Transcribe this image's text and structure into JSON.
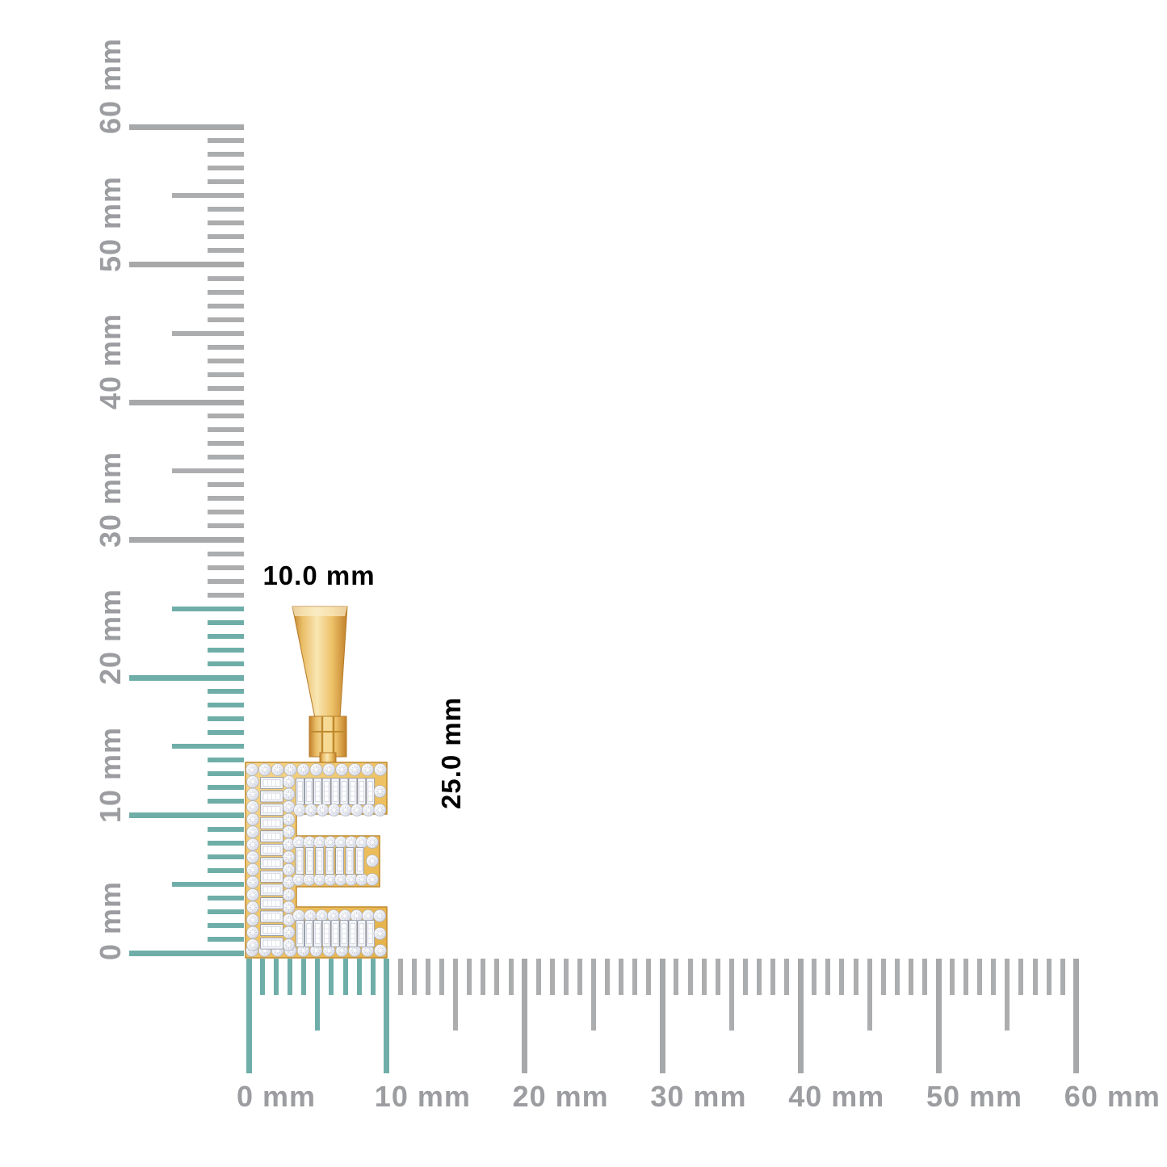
{
  "pendant": {
    "letter": "E",
    "width_label": "10.0 mm",
    "height_label": "25.0 mm",
    "material": "yellow-gold",
    "stones": "round-and-baguette-diamonds"
  },
  "vertical_ruler": {
    "unit": "mm",
    "min_mm": 0,
    "max_mm": 60,
    "minor_step_mm": 1,
    "medium_step_mm": 5,
    "major_step_mm": 10,
    "labels": [
      "0 mm",
      "10 mm",
      "20 mm",
      "30 mm",
      "40 mm",
      "50 mm",
      "60 mm"
    ],
    "highlight_extent_mm": 25
  },
  "horizontal_ruler": {
    "unit": "mm",
    "min_mm": 0,
    "max_mm": 60,
    "minor_step_mm": 1,
    "medium_step_mm": 5,
    "major_step_mm": 10,
    "labels": [
      "0 mm",
      "10 mm",
      "20 mm",
      "30 mm",
      "40 mm",
      "50 mm",
      "60 mm"
    ],
    "highlight_extent_mm": 10
  },
  "colors": {
    "background": "#FFFFFF",
    "highlight_teal": "#6FAEA8",
    "tick_gray": "#ACADAF",
    "tick_gray_major": "#A7A8AA",
    "label_gray": "#9C9DA0",
    "gold_base": "#EDBE5A",
    "gold_light": "#F9E6B2",
    "gold_dark": "#C18A2F",
    "diamond_white": "#F2F4F8",
    "diamond_edge": "#9BA1B0"
  }
}
